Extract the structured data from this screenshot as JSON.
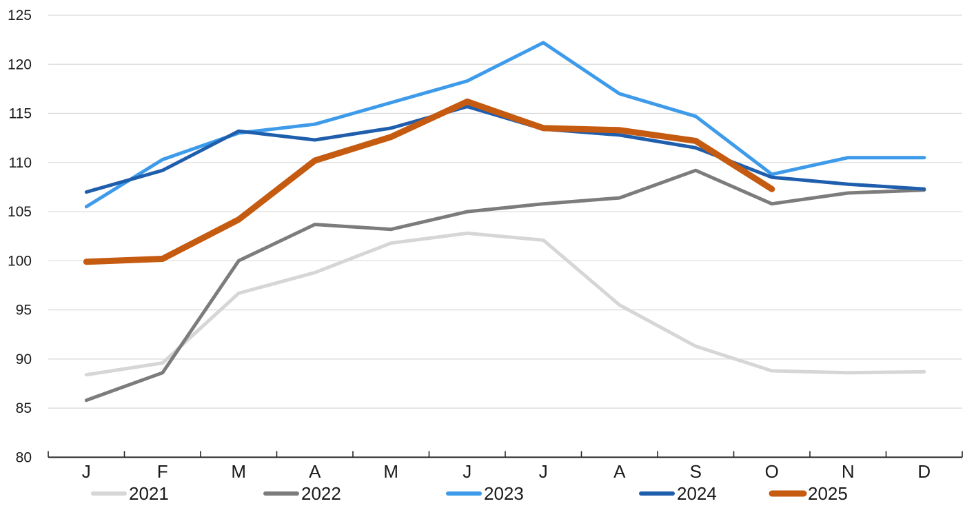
{
  "chart_data": {
    "type": "line",
    "title": "",
    "xlabel": "",
    "ylabel": "",
    "categories": [
      "J",
      "F",
      "M",
      "A",
      "M",
      "J",
      "J",
      "A",
      "S",
      "O",
      "N",
      "D"
    ],
    "series": [
      {
        "name": "2021",
        "color": "#D6D6D6",
        "stroke_width": 5,
        "values": [
          88.4,
          89.6,
          96.7,
          98.8,
          101.8,
          102.8,
          102.1,
          95.5,
          91.3,
          88.8,
          88.6,
          88.7
        ]
      },
      {
        "name": "2022",
        "color": "#7C7C7C",
        "stroke_width": 5,
        "values": [
          85.8,
          88.6,
          100.0,
          103.7,
          103.2,
          105.0,
          105.8,
          106.4,
          109.2,
          105.8,
          106.9,
          107.2
        ]
      },
      {
        "name": "2023",
        "color": "#3E9BE9",
        "stroke_width": 5,
        "values": [
          105.5,
          110.3,
          113.0,
          113.9,
          116.1,
          118.3,
          122.2,
          117.0,
          114.7,
          108.8,
          110.5,
          110.5
        ]
      },
      {
        "name": "2024",
        "color": "#1F5EAC",
        "stroke_width": 5,
        "values": [
          107.0,
          109.2,
          113.2,
          112.3,
          113.5,
          115.7,
          113.4,
          112.8,
          111.5,
          108.5,
          107.8,
          107.3
        ]
      },
      {
        "name": "2025",
        "color": "#C55A11",
        "stroke_width": 9,
        "values": [
          99.9,
          100.2,
          104.2,
          110.2,
          112.6,
          116.2,
          113.5,
          113.3,
          112.2,
          107.3
        ]
      }
    ],
    "y_axis": {
      "min": 80,
      "max": 125,
      "step": 5,
      "tick_labels": [
        "80",
        "85",
        "90",
        "95",
        "100",
        "105",
        "110",
        "115",
        "120",
        "125"
      ]
    },
    "x_axis": {
      "tick_labels": [
        "J",
        "F",
        "M",
        "A",
        "M",
        "J",
        "J",
        "A",
        "S",
        "O",
        "N",
        "D"
      ]
    },
    "grid": true,
    "gridline_color": "#D9D9D9",
    "axis_color": "#262626",
    "text_color": "#1A1A1A",
    "legend_position": "bottom",
    "legend_labels": [
      "2021",
      "2022",
      "2023",
      "2024",
      "2025"
    ]
  }
}
